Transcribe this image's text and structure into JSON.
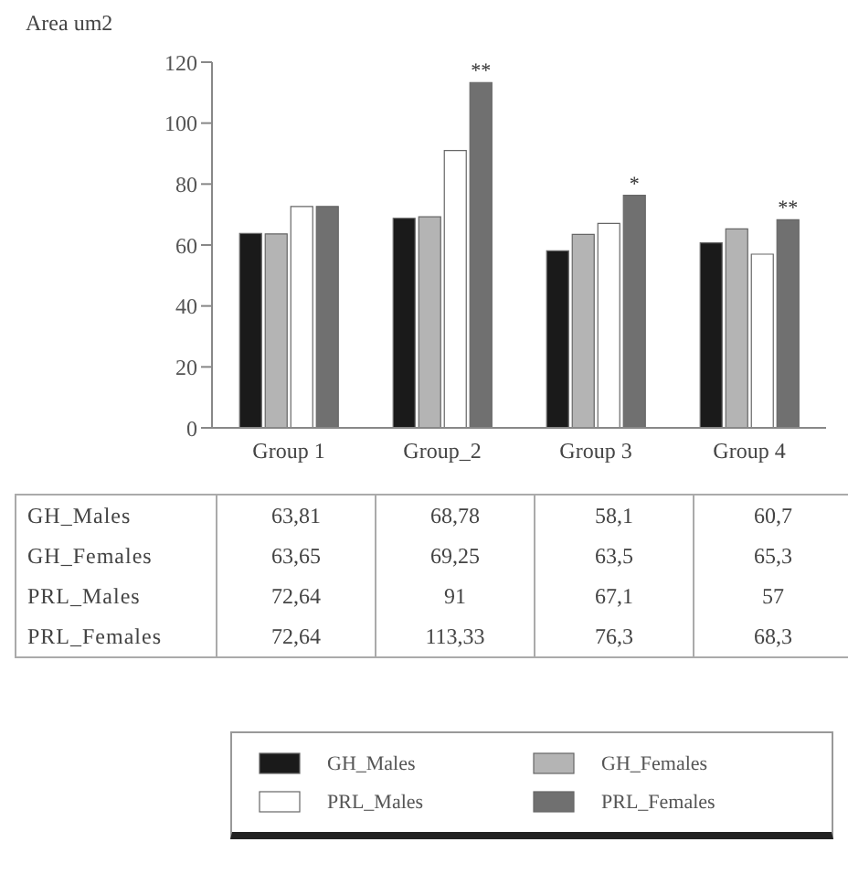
{
  "chart_data": {
    "type": "bar",
    "ylabel": "Area um2",
    "categories": [
      "Group 1",
      "Group_2",
      "Group 3",
      "Group 4"
    ],
    "series": [
      {
        "name": "GH_Males",
        "color": "#1a1a1a",
        "values": [
          63.81,
          68.78,
          58.1,
          60.7
        ],
        "value_labels": [
          "63,81",
          "68,78",
          "58,1",
          "60,7"
        ]
      },
      {
        "name": "GH_Females",
        "color": "#b4b4b4",
        "values": [
          63.65,
          69.25,
          63.5,
          65.3
        ],
        "value_labels": [
          "63,65",
          "69,25",
          "63,5",
          "65,3"
        ]
      },
      {
        "name": "PRL_Males",
        "color": "#ffffff",
        "values": [
          72.64,
          91,
          67.1,
          57
        ],
        "value_labels": [
          "72,64",
          "91",
          "67,1",
          "57"
        ]
      },
      {
        "name": "PRL_Females",
        "color": "#707070",
        "values": [
          72.64,
          113.33,
          76.3,
          68.3
        ],
        "value_labels": [
          "72,64",
          "113,33",
          "76,3",
          "68,3"
        ]
      }
    ],
    "annotations": [
      "**",
      "*",
      "**"
    ],
    "ylim": [
      0,
      120
    ],
    "yticks": [
      0,
      20,
      40,
      60,
      80,
      100,
      120
    ],
    "grid": false,
    "legend": "bottom"
  }
}
